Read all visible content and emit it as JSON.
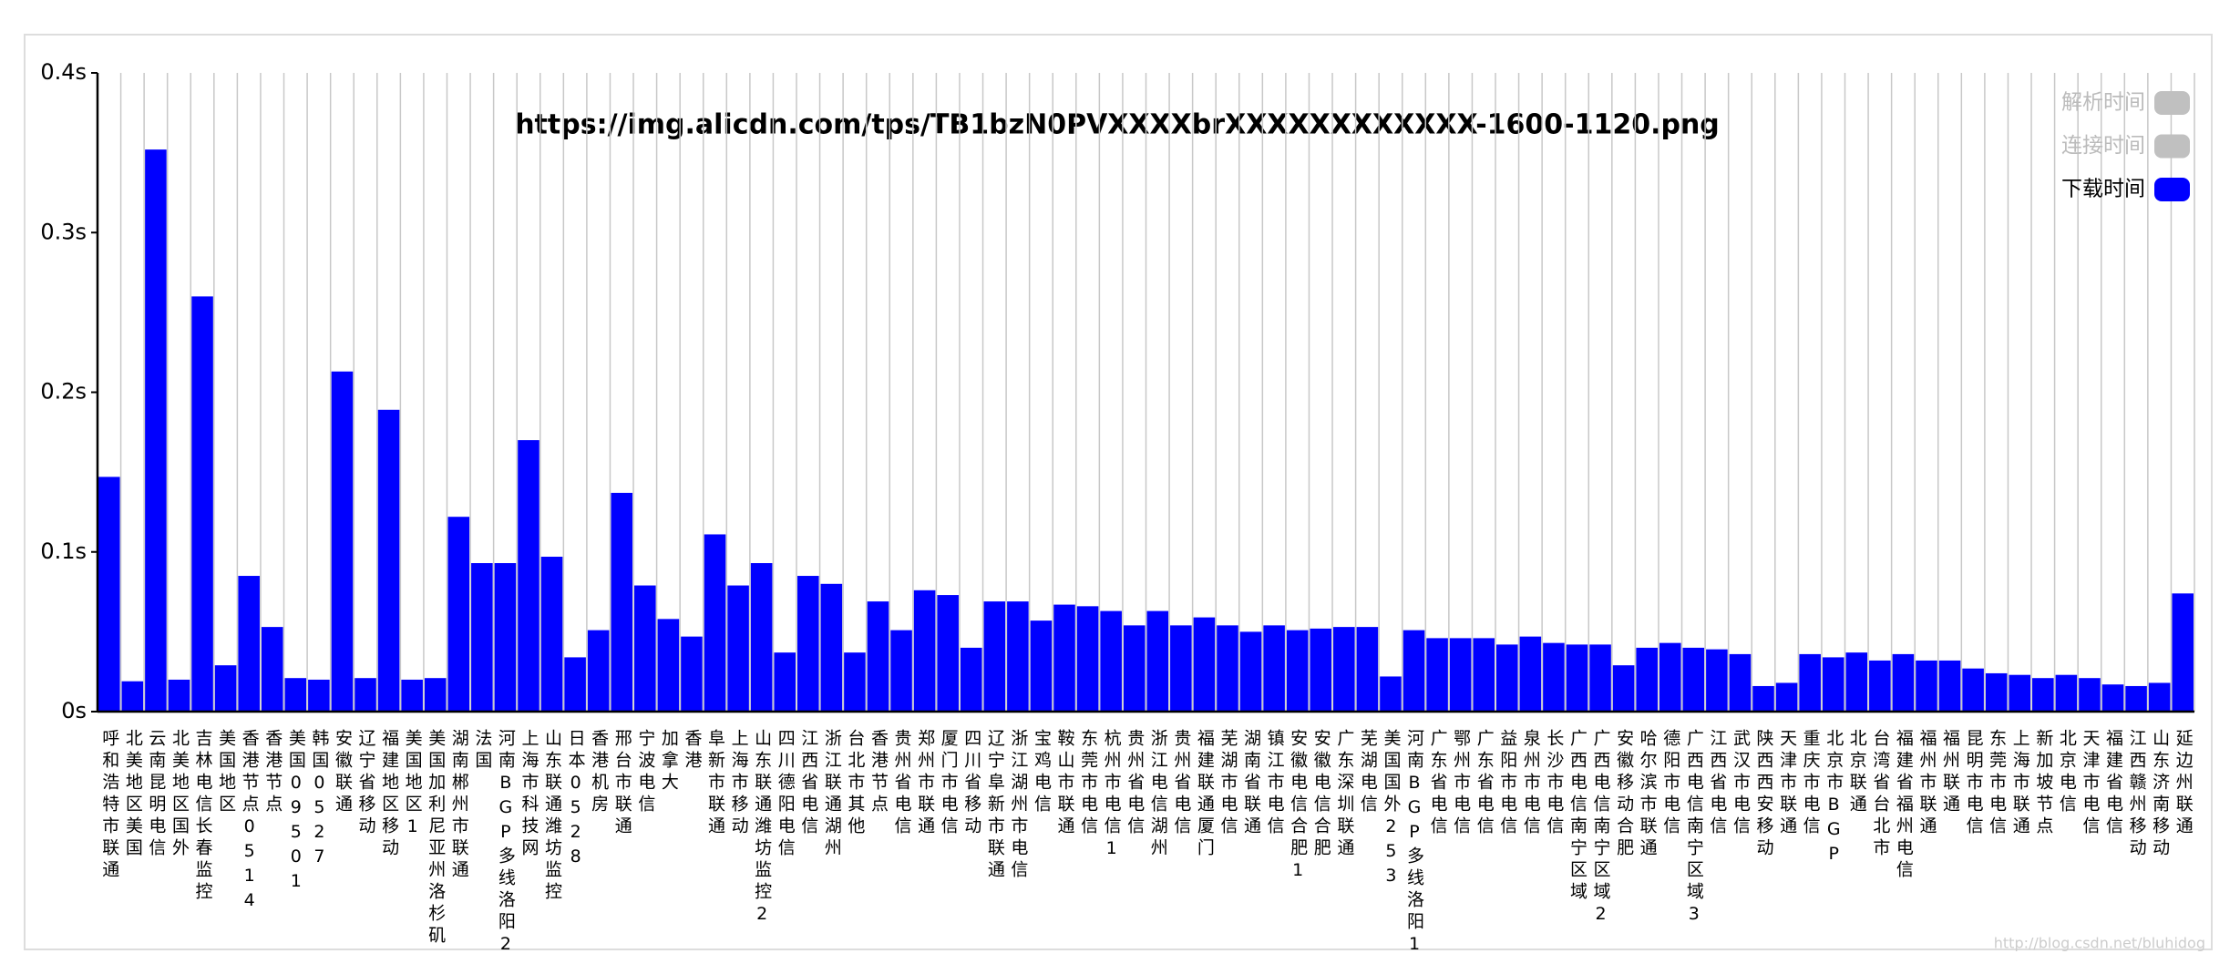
{
  "chart_data": {
    "type": "bar",
    "title": "https://img.alicdn.com/tps/TB1bzN0PVXXXXbrXXXXXXXXXXXX-1600-1120.png",
    "watermark": "http://blog.csdn.net/bluhidog",
    "categories": [
      "呼和浩特市联通",
      "北美地区美国",
      "云南昆明电信",
      "北美地区国外",
      "吉林电信长春监控",
      "美国地区",
      "香港节点0514",
      "香港节点",
      "美国09501",
      "韩国0527",
      "安徽联通",
      "辽宁省移动",
      "福建地区移动",
      "美国地区1",
      "美国加利尼亚州洛杉矶",
      "湖南郴州市联通",
      "法国",
      "河南BGP多线洛阳2",
      "上海市科技网",
      "山东联通潍坊监控",
      "日本0528",
      "香港机房",
      "邢台市联通",
      "宁波电信",
      "加拿大",
      "香港",
      "阜新市联通",
      "上海市移动",
      "山东联通潍坊监控2",
      "四川德阳电信",
      "江西省电信",
      "浙江联通湖州",
      "台北市其他",
      "香港节点",
      "贵州省电信",
      "郑州市联通",
      "厦门市电信",
      "四川省移动",
      "辽宁阜新市联通",
      "浙江湖州市电信",
      "宝鸡电信",
      "鞍山市联通",
      "东莞市电信",
      "杭州市电信1",
      "贵州省电信",
      "浙江电信湖州",
      "贵州省电信",
      "福建联通厦门",
      "芜湖市电信",
      "湖南省联通",
      "镇江市电信",
      "安徽电信合肥1",
      "安徽电信合肥",
      "广东深圳联通",
      "芜湖电信",
      "美国国外253",
      "河南BGP多线洛阳1",
      "广东省电信",
      "鄂州市电信",
      "广东省电信",
      "益阳市电信",
      "泉州市电信",
      "长沙市电信",
      "广西电信南宁区域",
      "广西电信南宁区域2",
      "安徽移动合肥",
      "哈尔滨市联通",
      "德阳市电信",
      "广西电信南宁区域3",
      "江西省电信",
      "武汉市电信",
      "陕西西安移动",
      "天津市联通",
      "重庆市电信",
      "北京市BGP",
      "北京联通",
      "台湾省台北市",
      "福建省福州电信",
      "福州市联通",
      "福州联通",
      "昆明市电信",
      "东莞市电信",
      "上海市联通",
      "新加坡节点",
      "北京电信",
      "天津市电信",
      "福建省电信",
      "江西赣州移动",
      "山东济南移动",
      "延边州联通"
    ],
    "series": [
      {
        "name": "解析时间",
        "color": "#c0c0c0",
        "visible": false
      },
      {
        "name": "连接时间",
        "color": "#c0c0c0",
        "visible": false
      },
      {
        "name": "下载时间",
        "color": "#0000ff",
        "visible": true,
        "values": [
          0.147,
          0.019,
          0.352,
          0.02,
          0.26,
          0.029,
          0.085,
          0.053,
          0.021,
          0.02,
          0.213,
          0.021,
          0.189,
          0.02,
          0.021,
          0.122,
          0.093,
          0.093,
          0.17,
          0.097,
          0.034,
          0.051,
          0.137,
          0.079,
          0.058,
          0.047,
          0.111,
          0.079,
          0.093,
          0.037,
          0.085,
          0.08,
          0.037,
          0.069,
          0.051,
          0.076,
          0.073,
          0.04,
          0.069,
          0.069,
          0.057,
          0.067,
          0.066,
          0.063,
          0.054,
          0.063,
          0.054,
          0.059,
          0.054,
          0.05,
          0.054,
          0.051,
          0.052,
          0.053,
          0.053,
          0.022,
          0.051,
          0.046,
          0.046,
          0.046,
          0.042,
          0.047,
          0.043,
          0.042,
          0.042,
          0.029,
          0.04,
          0.043,
          0.04,
          0.039,
          0.036,
          0.016,
          0.018,
          0.036,
          0.034,
          0.037,
          0.032,
          0.036,
          0.032,
          0.032,
          0.027,
          0.024,
          0.023,
          0.021,
          0.023,
          0.021,
          0.017,
          0.016,
          0.018,
          0.074
        ]
      }
    ],
    "ylim": [
      0,
      0.4
    ],
    "yticks": [
      {
        "value": 0,
        "label": "0s"
      },
      {
        "value": 0.1,
        "label": "0.1s"
      },
      {
        "value": 0.2,
        "label": "0.2s"
      },
      {
        "value": 0.3,
        "label": "0.3s"
      },
      {
        "value": 0.4,
        "label": "0.4s"
      }
    ],
    "grid": "x",
    "legend": "top-right"
  }
}
